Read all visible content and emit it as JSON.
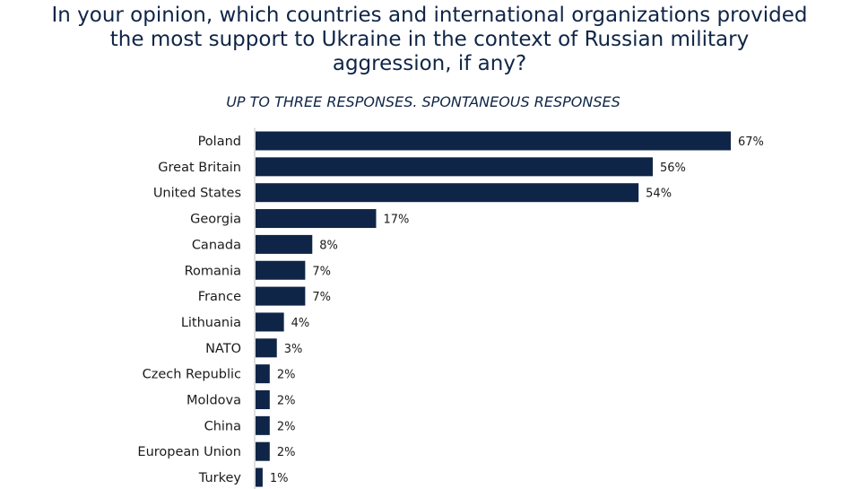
{
  "chart_data": {
    "type": "bar",
    "orientation": "horizontal",
    "title": [
      "In your opinion, which countries and international organizations provided",
      "the most support to Ukraine in the context of Russian military",
      "aggression, if any?"
    ],
    "subtitle": "UP TO THREE RESPONSES. SPONTANEOUS RESPONSES",
    "categories": [
      "Poland",
      "Great Britain",
      "United States",
      "Georgia",
      "Canada",
      "Romania",
      "France",
      "Lithuania",
      "NATO",
      "Czech Republic",
      "Moldova",
      "China",
      "European Union",
      "Turkey"
    ],
    "values": [
      67,
      56,
      54,
      17,
      8,
      7,
      7,
      4,
      3,
      2,
      2,
      2,
      2,
      1
    ],
    "value_labels": [
      "67%",
      "56%",
      "54%",
      "17%",
      "8%",
      "7%",
      "7%",
      "4%",
      "3%",
      "2%",
      "2%",
      "2%",
      "2%",
      "1%"
    ],
    "xlim": [
      0,
      67
    ],
    "grid": false,
    "legend": "none",
    "bar_color": "#0f2547",
    "title_color": "#0f2547"
  }
}
